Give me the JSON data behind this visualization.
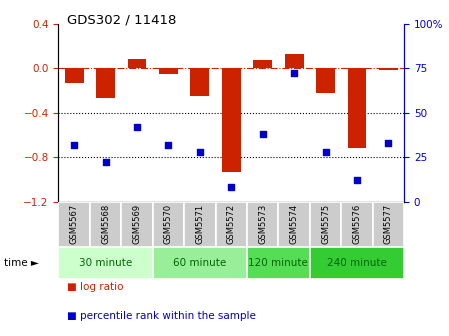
{
  "title": "GDS302 / 11418",
  "samples": [
    "GSM5567",
    "GSM5568",
    "GSM5569",
    "GSM5570",
    "GSM5571",
    "GSM5572",
    "GSM5573",
    "GSM5574",
    "GSM5575",
    "GSM5576",
    "GSM5577"
  ],
  "log_ratio": [
    -0.13,
    -0.27,
    0.08,
    -0.05,
    -0.25,
    -0.93,
    0.07,
    0.13,
    -0.22,
    -0.72,
    -0.02
  ],
  "percentile": [
    32,
    22,
    42,
    32,
    28,
    8,
    38,
    72,
    28,
    12,
    33
  ],
  "groups": [
    {
      "label": "30 minute",
      "start": 0,
      "end": 3,
      "color": "#ccffcc"
    },
    {
      "label": "60 minute",
      "start": 3,
      "end": 6,
      "color": "#99ee99"
    },
    {
      "label": "120 minute",
      "start": 6,
      "end": 8,
      "color": "#55dd55"
    },
    {
      "label": "240 minute",
      "start": 8,
      "end": 11,
      "color": "#33cc33"
    }
  ],
  "bar_color": "#cc2200",
  "dot_color": "#0000cc",
  "ylim_left": [
    -1.2,
    0.4
  ],
  "ylim_right": [
    0,
    100
  ],
  "yticks_left": [
    -1.2,
    -0.8,
    -0.4,
    0.0,
    0.4
  ],
  "yticks_right": [
    0,
    25,
    50,
    75,
    100
  ],
  "ytick_labels_right": [
    "0",
    "25",
    "50",
    "75",
    "100%"
  ],
  "hline_y": 0.0,
  "dotted_lines": [
    -0.4,
    -0.8
  ],
  "bar_width": 0.6,
  "legend_labels": [
    "log ratio",
    "percentile rank within the sample"
  ],
  "legend_colors": [
    "#cc2200",
    "#0000cc"
  ],
  "group_label_color": "#006600",
  "label_band_color": "#cccccc",
  "time_arrow": "time ►"
}
